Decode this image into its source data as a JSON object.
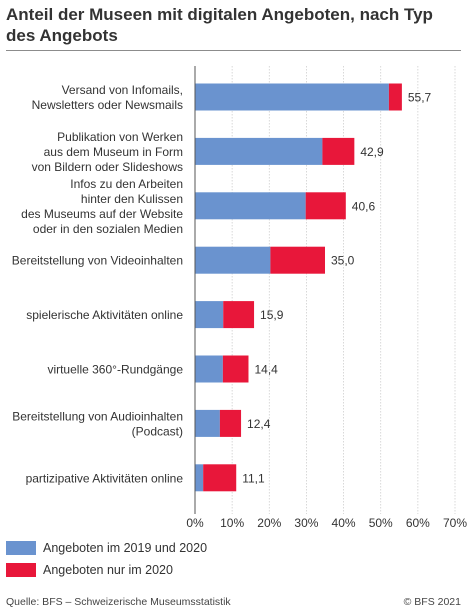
{
  "title": "Anteil der Museen mit digitalen Angeboten, nach Typ des Angebots",
  "chart_data": {
    "type": "bar",
    "orientation": "horizontal",
    "stacked": true,
    "title": "Anteil der Museen mit digitalen Angeboten, nach Typ des Angebots",
    "categories": [
      [
        "Versand von Infomails,",
        "Newsletters oder Newsmails"
      ],
      [
        "Publikation von Werken",
        "aus dem Museum in Form",
        "von Bildern oder Slideshows"
      ],
      [
        "Infos zu den Arbeiten",
        "hinter den Kulissen",
        "des Museums auf der Website",
        "oder in den sozialen Medien"
      ],
      [
        "Bereitstellung von Videoinhalten"
      ],
      [
        "spielerische Aktivitäten online"
      ],
      [
        "virtuelle 360°-Rundgänge"
      ],
      [
        "Bereitstellung von Audioinhalten",
        "(Podcast)"
      ],
      [
        "partizipative Aktivitäten online"
      ]
    ],
    "series": [
      {
        "name": "Angeboten im 2019 und 2020",
        "color": "#6a93cf",
        "values": [
          52.2,
          34.3,
          29.8,
          20.3,
          7.6,
          7.5,
          6.7,
          2.2
        ]
      },
      {
        "name": "Angeboten nur im 2020",
        "color": "#e8173a",
        "values": [
          3.5,
          8.6,
          10.8,
          14.7,
          8.3,
          6.9,
          5.7,
          8.9
        ]
      }
    ],
    "totals": [
      "55,7",
      "42,9",
      "40,6",
      "35,0",
      "15,9",
      "14,4",
      "12,4",
      "11,1"
    ],
    "xlim": [
      0,
      70
    ],
    "xticks": [
      0,
      10,
      20,
      30,
      40,
      50,
      60,
      70
    ],
    "xtick_labels": [
      "0%",
      "10%",
      "20%",
      "30%",
      "40%",
      "50%",
      "60%",
      "70%"
    ],
    "grid": "vertical",
    "legend_position": "bottom-left"
  },
  "footer": {
    "source": "Quelle: BFS – Schweizerische Museumsstatistik",
    "copyright": "© BFS 2021"
  }
}
